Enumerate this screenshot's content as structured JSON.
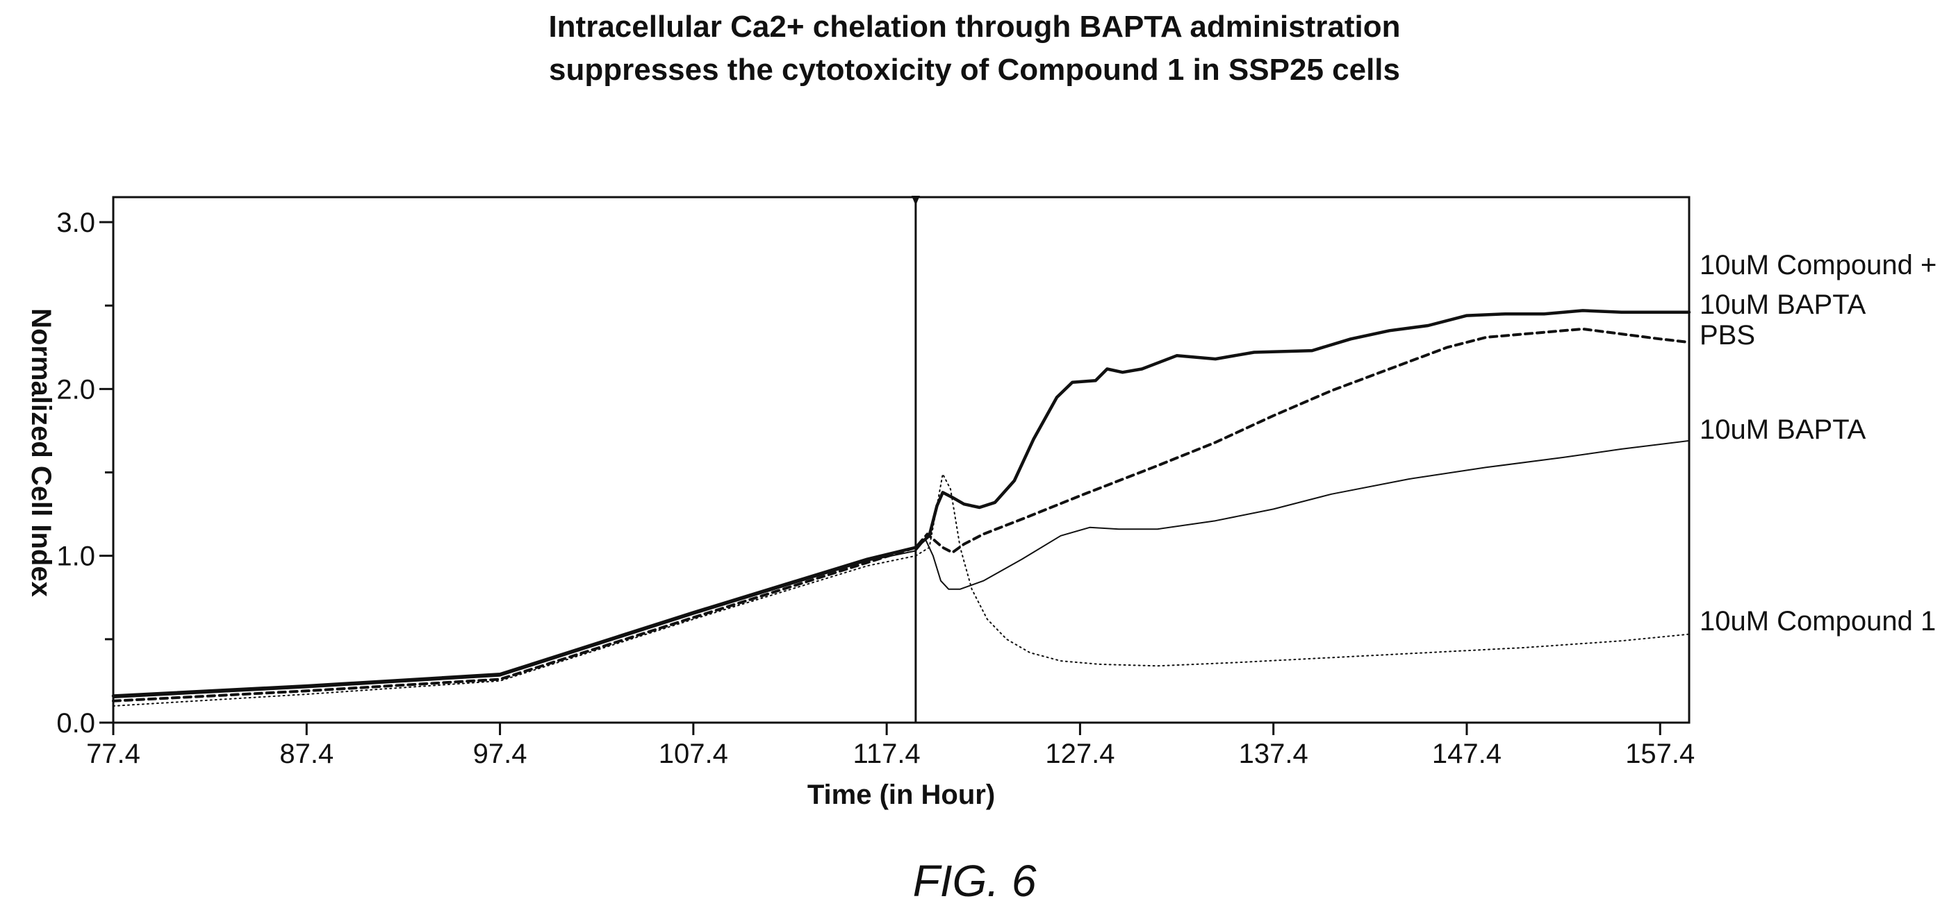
{
  "chart_data": {
    "type": "line",
    "title": "Intracellular Ca2+ chelation through BAPTA administration",
    "subtitle": "suppresses the cytotoxicity of Compound 1 in SSP25 cells",
    "xlabel": "Time (in Hour)",
    "ylabel": "Normalized Cell Index",
    "xlim": [
      77.4,
      158.9
    ],
    "ylim": [
      0.0,
      3.15
    ],
    "x_ticks": [
      "77.4",
      "87.4",
      "97.4",
      "107.4",
      "117.4",
      "127.4",
      "137.4",
      "147.4",
      "157.4"
    ],
    "y_ticks": [
      "0.0",
      "1.0",
      "2.0",
      "3.0"
    ],
    "minor_y_ticks": [
      0.5,
      1.5,
      2.5
    ],
    "marker_x": 118.9,
    "grid": false,
    "legend": "right-side labels",
    "series": [
      {
        "name": "10uM Compound + 10uM BAPTA",
        "label_lines": [
          "10uM Compound +",
          "10uM BAPTA"
        ],
        "style": "thick-solid",
        "points": [
          [
            77.4,
            0.16
          ],
          [
            87.4,
            0.22
          ],
          [
            97.4,
            0.29
          ],
          [
            107.4,
            0.66
          ],
          [
            116.4,
            0.98
          ],
          [
            118.9,
            1.05
          ],
          [
            119.6,
            1.12
          ],
          [
            120.0,
            1.3
          ],
          [
            120.3,
            1.38
          ],
          [
            120.8,
            1.35
          ],
          [
            121.4,
            1.31
          ],
          [
            122.2,
            1.29
          ],
          [
            123.0,
            1.32
          ],
          [
            124.0,
            1.45
          ],
          [
            125.0,
            1.7
          ],
          [
            126.2,
            1.95
          ],
          [
            127.0,
            2.04
          ],
          [
            128.2,
            2.05
          ],
          [
            128.8,
            2.12
          ],
          [
            129.6,
            2.1
          ],
          [
            130.6,
            2.12
          ],
          [
            132.4,
            2.2
          ],
          [
            134.4,
            2.18
          ],
          [
            136.4,
            2.22
          ],
          [
            139.4,
            2.23
          ],
          [
            141.4,
            2.3
          ],
          [
            143.4,
            2.35
          ],
          [
            145.4,
            2.38
          ],
          [
            147.4,
            2.44
          ],
          [
            149.4,
            2.45
          ],
          [
            151.4,
            2.45
          ],
          [
            153.4,
            2.47
          ],
          [
            155.4,
            2.46
          ],
          [
            158.9,
            2.46
          ]
        ]
      },
      {
        "name": "PBS",
        "label_lines": [
          "PBS"
        ],
        "style": "dashed",
        "points": [
          [
            77.4,
            0.13
          ],
          [
            87.4,
            0.19
          ],
          [
            97.4,
            0.26
          ],
          [
            107.4,
            0.63
          ],
          [
            116.4,
            0.96
          ],
          [
            118.9,
            1.05
          ],
          [
            119.5,
            1.13
          ],
          [
            119.9,
            1.09
          ],
          [
            120.3,
            1.05
          ],
          [
            120.8,
            1.02
          ],
          [
            121.4,
            1.07
          ],
          [
            122.4,
            1.13
          ],
          [
            124.4,
            1.22
          ],
          [
            127.4,
            1.36
          ],
          [
            131.4,
            1.54
          ],
          [
            134.4,
            1.68
          ],
          [
            137.4,
            1.84
          ],
          [
            140.4,
            1.99
          ],
          [
            143.4,
            2.12
          ],
          [
            146.4,
            2.25
          ],
          [
            148.4,
            2.31
          ],
          [
            151.4,
            2.34
          ],
          [
            153.4,
            2.36
          ],
          [
            155.4,
            2.33
          ],
          [
            157.4,
            2.3
          ],
          [
            158.9,
            2.28
          ]
        ]
      },
      {
        "name": "10uM BAPTA",
        "label_lines": [
          "10uM BAPTA"
        ],
        "style": "thin-solid",
        "points": [
          [
            77.4,
            0.15
          ],
          [
            87.4,
            0.21
          ],
          [
            97.4,
            0.28
          ],
          [
            107.4,
            0.65
          ],
          [
            116.4,
            0.97
          ],
          [
            118.9,
            1.03
          ],
          [
            119.4,
            1.1
          ],
          [
            119.8,
            1.0
          ],
          [
            120.2,
            0.85
          ],
          [
            120.6,
            0.8
          ],
          [
            121.2,
            0.8
          ],
          [
            122.4,
            0.85
          ],
          [
            124.4,
            0.98
          ],
          [
            126.4,
            1.12
          ],
          [
            127.9,
            1.17
          ],
          [
            129.4,
            1.16
          ],
          [
            131.4,
            1.16
          ],
          [
            134.4,
            1.21
          ],
          [
            137.4,
            1.28
          ],
          [
            140.4,
            1.37
          ],
          [
            144.4,
            1.46
          ],
          [
            148.4,
            1.53
          ],
          [
            152.4,
            1.59
          ],
          [
            155.4,
            1.64
          ],
          [
            158.9,
            1.69
          ]
        ]
      },
      {
        "name": "10uM Compound 1",
        "label_lines": [
          "10uM Compound 1"
        ],
        "style": "dotted",
        "points": [
          [
            77.4,
            0.1
          ],
          [
            87.4,
            0.17
          ],
          [
            97.4,
            0.25
          ],
          [
            107.4,
            0.62
          ],
          [
            116.4,
            0.94
          ],
          [
            118.9,
            1.0
          ],
          [
            119.6,
            1.05
          ],
          [
            120.0,
            1.3
          ],
          [
            120.3,
            1.49
          ],
          [
            120.7,
            1.4
          ],
          [
            121.2,
            1.05
          ],
          [
            121.8,
            0.8
          ],
          [
            122.6,
            0.62
          ],
          [
            123.6,
            0.5
          ],
          [
            124.8,
            0.42
          ],
          [
            126.4,
            0.37
          ],
          [
            128.4,
            0.35
          ],
          [
            131.4,
            0.34
          ],
          [
            135.4,
            0.36
          ],
          [
            140.4,
            0.39
          ],
          [
            145.4,
            0.42
          ],
          [
            150.4,
            0.45
          ],
          [
            155.4,
            0.49
          ],
          [
            158.9,
            0.53
          ]
        ]
      }
    ]
  },
  "figure_label": "FIG. 6"
}
